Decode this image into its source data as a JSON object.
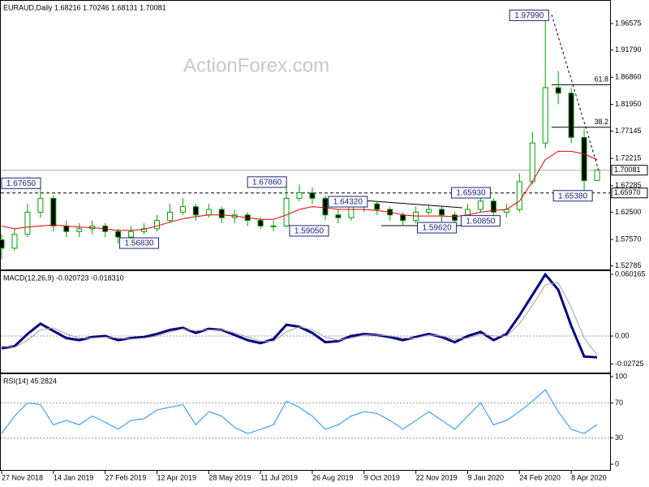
{
  "chart_data": [
    {
      "type": "candlestick",
      "title": "EURAUD,Daily  1.68216 1.70246 1.68131 1.70081",
      "watermark": "ActionForex.com",
      "x": [
        0,
        8,
        16,
        24,
        32,
        40,
        48,
        56,
        64,
        72,
        80,
        88,
        96,
        104,
        112,
        120,
        128,
        136,
        144,
        152,
        160,
        168,
        176,
        184,
        192,
        200,
        208,
        216,
        224,
        232,
        240,
        248,
        256,
        264,
        272,
        280,
        288,
        296,
        304,
        312,
        320,
        328,
        336,
        344,
        352,
        360,
        368
      ],
      "xlim": [
        0,
        376
      ],
      "ohlc": [
        [
          1.575,
          1.585,
          1.54,
          1.56
        ],
        [
          1.56,
          1.595,
          1.555,
          1.585
        ],
        [
          1.585,
          1.64,
          1.58,
          1.625
        ],
        [
          1.625,
          1.6765,
          1.615,
          1.65
        ],
        [
          1.65,
          1.655,
          1.59,
          1.6
        ],
        [
          1.6,
          1.61,
          1.58,
          1.59
        ],
        [
          1.59,
          1.605,
          1.58,
          1.595
        ],
        [
          1.595,
          1.61,
          1.585,
          1.6
        ],
        [
          1.6,
          1.605,
          1.58,
          1.59
        ],
        [
          1.59,
          1.595,
          1.5683,
          1.58
        ],
        [
          1.58,
          1.6,
          1.575,
          1.59
        ],
        [
          1.59,
          1.605,
          1.585,
          1.595
        ],
        [
          1.595,
          1.62,
          1.59,
          1.61
        ],
        [
          1.61,
          1.64,
          1.605,
          1.625
        ],
        [
          1.625,
          1.65,
          1.62,
          1.635
        ],
        [
          1.635,
          1.64,
          1.61,
          1.62
        ],
        [
          1.62,
          1.64,
          1.615,
          1.63
        ],
        [
          1.63,
          1.635,
          1.605,
          1.615
        ],
        [
          1.615,
          1.63,
          1.605,
          1.62
        ],
        [
          1.62,
          1.625,
          1.6,
          1.61
        ],
        [
          1.61,
          1.615,
          1.595,
          1.6
        ],
        [
          1.6,
          1.61,
          1.5905,
          1.6
        ],
        [
          1.6,
          1.6786,
          1.598,
          1.65
        ],
        [
          1.65,
          1.675,
          1.645,
          1.66
        ],
        [
          1.66,
          1.67,
          1.64,
          1.65
        ],
        [
          1.65,
          1.655,
          1.61,
          1.62
        ],
        [
          1.62,
          1.63,
          1.605,
          1.615
        ],
        [
          1.615,
          1.6432,
          1.61,
          1.635
        ],
        [
          1.635,
          1.645,
          1.625,
          1.64
        ],
        [
          1.64,
          1.645,
          1.62,
          1.63
        ],
        [
          1.63,
          1.635,
          1.61,
          1.62
        ],
        [
          1.62,
          1.625,
          1.6,
          1.61
        ],
        [
          1.61,
          1.635,
          1.605,
          1.625
        ],
        [
          1.625,
          1.64,
          1.62,
          1.63
        ],
        [
          1.63,
          1.635,
          1.5962,
          1.62
        ],
        [
          1.62,
          1.625,
          1.6,
          1.61
        ],
        [
          1.61,
          1.64,
          1.6085,
          1.63
        ],
        [
          1.63,
          1.6593,
          1.625,
          1.645
        ],
        [
          1.645,
          1.65,
          1.615,
          1.625
        ],
        [
          1.625,
          1.64,
          1.615,
          1.63
        ],
        [
          1.63,
          1.695,
          1.625,
          1.68
        ],
        [
          1.68,
          1.77,
          1.675,
          1.75
        ],
        [
          1.75,
          1.9799,
          1.74,
          1.85
        ],
        [
          1.85,
          1.88,
          1.82,
          1.84
        ],
        [
          1.84,
          1.85,
          1.75,
          1.76
        ],
        [
          1.76,
          1.775,
          1.6538,
          1.682
        ],
        [
          1.68216,
          1.70246,
          1.68131,
          1.70081
        ]
      ],
      "up_color": "#ffffff",
      "down_color": "#000000",
      "wick_color": "#00a000",
      "series": [
        {
          "color": "#e00000",
          "values": [
            1.6,
            1.595,
            1.598,
            1.6,
            1.602,
            1.6,
            1.598,
            1.597,
            1.595,
            1.592,
            1.592,
            1.594,
            1.6,
            1.607,
            1.613,
            1.617,
            1.62,
            1.62,
            1.618,
            1.615,
            1.612,
            1.612,
            1.62,
            1.63,
            1.635,
            1.633,
            1.63,
            1.63,
            1.63,
            1.628,
            1.625,
            1.62,
            1.618,
            1.618,
            1.618,
            1.617,
            1.62,
            1.625,
            1.628,
            1.63,
            1.645,
            1.68,
            1.72,
            1.735,
            1.735,
            1.73,
            1.72
          ]
        }
      ],
      "ylim": [
        1.52,
        2.0083
      ],
      "yticks": [
        1.96575,
        {
          "value": 1.9179,
          "label": "1.91790"
        },
        {
          "value": 1.8686,
          "label": "1.86860"
        },
        {
          "value": 1.8195,
          "label": "1.81950"
        },
        1.77145,
        1.72215,
        1.67285,
        {
          "value": 1.625,
          "label": "1.62500"
        },
        {
          "value": 1.5757,
          "label": "1.57570"
        },
        1.52785
      ],
      "price_lines": [
        {
          "value": 1.70081,
          "label": "1.70081",
          "style": "solid"
        },
        {
          "value": 1.6597,
          "label": "1.65970",
          "style": "dashed"
        }
      ],
      "annotations": [
        {
          "value": 1.9799,
          "label": "1.97990",
          "x": 326
        },
        {
          "value": 1.6765,
          "label": "1.67650",
          "x": 12
        },
        {
          "value": 1.6786,
          "label": "1.67860",
          "x": 164
        },
        {
          "value": 1.6432,
          "label": "1.64320",
          "x": 214
        },
        {
          "value": 1.6593,
          "label": "1.65930",
          "x": 290
        },
        {
          "value": 1.5683,
          "label": "1.56830",
          "x": 85
        },
        {
          "value": 1.5905,
          "label": "1.59050",
          "x": 190
        },
        {
          "value": 1.5962,
          "label": "1.59620",
          "x": 269
        },
        {
          "value": 1.6085,
          "label": "1.60850",
          "x": 296
        },
        {
          "value": 1.6538,
          "label": "1.65380",
          "x": 353
        }
      ],
      "fib_levels": [
        {
          "value": 1.8553,
          "label": "61.8"
        },
        {
          "value": 1.7784,
          "label": "38.2"
        }
      ]
    },
    {
      "type": "line",
      "title": "MACD(12,26,9) -0.020723 -0.018310",
      "x": [
        0,
        8,
        16,
        24,
        32,
        40,
        48,
        56,
        64,
        72,
        80,
        88,
        96,
        104,
        112,
        120,
        128,
        136,
        144,
        152,
        160,
        168,
        176,
        184,
        192,
        200,
        208,
        216,
        224,
        232,
        240,
        248,
        256,
        264,
        272,
        280,
        288,
        296,
        304,
        312,
        320,
        328,
        336,
        344,
        352,
        360,
        368
      ],
      "xlim": [
        0,
        376
      ],
      "series": [
        {
          "color": "#000080",
          "width": 3,
          "values": [
            -0.012,
            -0.01,
            0.002,
            0.012,
            0.005,
            -0.002,
            -0.004,
            -0.001,
            0.0,
            -0.004,
            -0.002,
            -0.001,
            0.002,
            0.006,
            0.008,
            0.003,
            0.007,
            0.006,
            0.001,
            -0.004,
            -0.007,
            -0.003,
            0.011,
            0.009,
            0.003,
            -0.006,
            -0.005,
            0.0,
            0.002,
            0.001,
            -0.001,
            -0.004,
            -0.001,
            0.002,
            -0.001,
            -0.006,
            0.0,
            0.004,
            -0.004,
            0.002,
            0.02,
            0.04,
            0.06,
            0.045,
            0.01,
            -0.02,
            -0.020723
          ]
        },
        {
          "color": "#a0a0a0",
          "width": 1,
          "values": [
            -0.01,
            -0.011,
            -0.004,
            0.006,
            0.008,
            0.002,
            -0.002,
            -0.002,
            -0.001,
            -0.002,
            -0.003,
            -0.002,
            0.0,
            0.004,
            0.007,
            0.005,
            0.006,
            0.006,
            0.003,
            -0.001,
            -0.005,
            -0.005,
            0.004,
            0.009,
            0.006,
            -0.001,
            -0.004,
            -0.002,
            0.001,
            0.001,
            0.0,
            -0.002,
            -0.002,
            0.001,
            0.0,
            -0.003,
            -0.002,
            0.002,
            0.0,
            0.0,
            0.012,
            0.03,
            0.05,
            0.052,
            0.028,
            -0.002,
            -0.01831
          ]
        }
      ],
      "ylim": [
        -0.0364,
        0.0641
      ],
      "yticks": [
        0.060165,
        {
          "value": 0,
          "label": "0.00"
        },
        -0.02725
      ],
      "levels": [
        0
      ]
    },
    {
      "type": "line",
      "title": "RSI(14) 45.2824",
      "x": [
        0,
        8,
        16,
        24,
        32,
        40,
        48,
        56,
        64,
        72,
        80,
        88,
        96,
        104,
        112,
        120,
        128,
        136,
        144,
        152,
        160,
        168,
        176,
        184,
        192,
        200,
        208,
        216,
        224,
        232,
        240,
        248,
        256,
        264,
        272,
        280,
        288,
        296,
        304,
        312,
        320,
        328,
        336,
        344,
        352,
        360,
        368
      ],
      "xlim": [
        0,
        376
      ],
      "series": [
        {
          "color": "#1e90ff",
          "width": 1,
          "values": [
            35,
            55,
            70,
            68,
            45,
            50,
            45,
            55,
            48,
            40,
            50,
            52,
            62,
            65,
            68,
            45,
            60,
            55,
            42,
            35,
            40,
            45,
            72,
            65,
            55,
            40,
            45,
            55,
            60,
            58,
            50,
            40,
            50,
            60,
            50,
            40,
            55,
            70,
            45,
            50,
            60,
            72,
            85,
            60,
            40,
            35,
            45.2824
          ]
        }
      ],
      "ylim": [
        -7.4,
        103.7
      ],
      "yticks": [
        100,
        70,
        30,
        0
      ],
      "levels": [
        70,
        30
      ],
      "xticks": [
        {
          "value": 0,
          "label": "27 Nov 2018"
        },
        {
          "value": 32,
          "label": "14 Jan 2019"
        },
        {
          "value": 64,
          "label": "27 Feb 2019"
        },
        {
          "value": 96,
          "label": "12 Apr 2019"
        },
        {
          "value": 128,
          "label": "28 May 2019"
        },
        {
          "value": 160,
          "label": "11 Jul 2019"
        },
        {
          "value": 192,
          "label": "26 Aug 2019"
        },
        {
          "value": 224,
          "label": "9 Oct 2019"
        },
        {
          "value": 256,
          "label": "22 Nov 2019"
        },
        {
          "value": 288,
          "label": "9 Jan 2020"
        },
        {
          "value": 320,
          "label": "24 Feb 2020"
        },
        {
          "value": 352,
          "label": "8 Apr 2020"
        }
      ]
    }
  ]
}
